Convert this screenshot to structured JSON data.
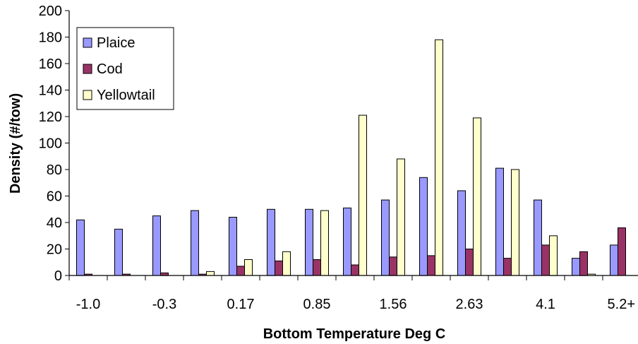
{
  "chart_data": {
    "type": "bar",
    "xlabel": "Bottom Temperature Deg C",
    "ylabel": "Density (#/tow)",
    "ylim": [
      0,
      200
    ],
    "yticks": [
      0,
      20,
      40,
      60,
      80,
      100,
      120,
      140,
      160,
      180,
      200
    ],
    "category_count": 15,
    "x_tick_labels": [
      "-1.0",
      "",
      "-0.3",
      "",
      "0.17",
      "",
      "0.85",
      "",
      "1.56",
      "",
      "2.63",
      "",
      "4.1",
      "",
      "5.2+"
    ],
    "series": [
      {
        "name": "Plaice",
        "color": "#9999ff",
        "values": [
          42,
          35,
          45,
          49,
          44,
          50,
          50,
          51,
          57,
          74,
          64,
          81,
          57,
          13,
          23
        ]
      },
      {
        "name": "Cod",
        "color": "#993366",
        "values": [
          1,
          1,
          2,
          1,
          7,
          11,
          12,
          8,
          14,
          15,
          20,
          13,
          23,
          18,
          36
        ]
      },
      {
        "name": "Yellowtail",
        "color": "#ffffcc",
        "values": [
          0,
          0,
          0,
          3,
          12,
          18,
          49,
          121,
          88,
          178,
          119,
          80,
          30,
          1,
          0
        ]
      }
    ],
    "legend_position": "top-left",
    "grid": false
  }
}
